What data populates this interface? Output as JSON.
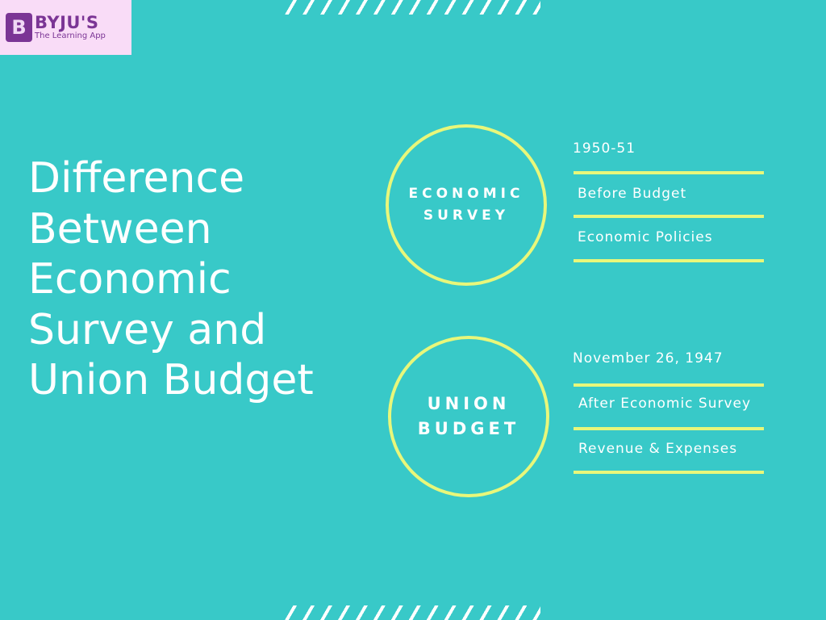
{
  "logo": {
    "brand": "BYJU'S",
    "tagline": "The Learning App",
    "mark": "B"
  },
  "title": [
    "Difference",
    "Between",
    "Economic",
    "Survey and",
    "Union Budget"
  ],
  "economic_survey": {
    "label_line1": "ECONOMIC",
    "label_line2": "SURVEY",
    "year": "1950-51",
    "items": [
      "Before Budget",
      "Economic Policies"
    ]
  },
  "union_budget": {
    "label_line1": "UNION",
    "label_line2": "BUDGET",
    "date": "November 26, 1947",
    "items": [
      "After Economic Survey",
      "Revenue & Expenses"
    ]
  },
  "colors": {
    "background": "#38c9c8",
    "accent": "#e8f77a",
    "logo_bg": "#f9dcf7",
    "logo_brand": "#7b3595"
  }
}
